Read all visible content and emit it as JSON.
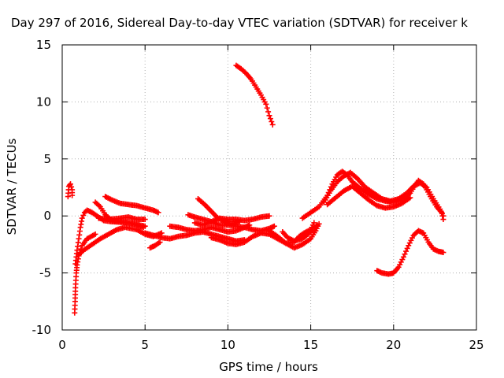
{
  "chart_data": {
    "type": "scatter",
    "title": "Day 297 of 2016, Sidereal Day-to-day VTEC variation (SDTVAR) for receiver k",
    "xlabel": "GPS time / hours",
    "ylabel": "SDTVAR / TECUs",
    "xlim": [
      0,
      25
    ],
    "ylim": [
      -10,
      15
    ],
    "xticks": [
      "0",
      "5",
      "10",
      "15",
      "20",
      "25"
    ],
    "yticks": [
      "-10",
      "-5",
      "0",
      "5",
      "10",
      "15"
    ],
    "grid": true,
    "grid_style": "dotted",
    "marker": "plus",
    "color": "#ff0000",
    "series": [
      {
        "values": [
          [
            0.35,
            1.7
          ],
          [
            0.4,
            2.6
          ],
          [
            0.5,
            2.8
          ],
          [
            0.6,
            2.3
          ],
          [
            0.6,
            1.8
          ]
        ]
      },
      {
        "values": [
          [
            0.75,
            -8.5
          ],
          [
            0.78,
            -7.5
          ],
          [
            0.8,
            -6.3
          ],
          [
            0.85,
            -5.0
          ],
          [
            0.9,
            -4.3
          ],
          [
            1.0,
            -3.5
          ],
          [
            1.2,
            -2.6
          ],
          [
            1.5,
            -2.0
          ],
          [
            2.0,
            -1.6
          ]
        ]
      },
      {
        "values": [
          [
            0.8,
            -4.2
          ],
          [
            0.9,
            -3.0
          ],
          [
            1.0,
            -2.0
          ],
          [
            1.1,
            -1.0
          ],
          [
            1.2,
            -0.2
          ],
          [
            1.35,
            0.3
          ],
          [
            1.5,
            0.5
          ],
          [
            1.8,
            0.3
          ],
          [
            2.1,
            0.0
          ],
          [
            2.5,
            -0.4
          ],
          [
            3.0,
            -0.5
          ],
          [
            4.0,
            -0.6
          ],
          [
            5.0,
            -0.9
          ]
        ]
      },
      {
        "values": [
          [
            1.0,
            -3.4
          ],
          [
            1.3,
            -3.0
          ],
          [
            1.8,
            -2.5
          ],
          [
            2.3,
            -2.0
          ],
          [
            2.8,
            -1.6
          ],
          [
            3.3,
            -1.2
          ],
          [
            3.8,
            -1.0
          ],
          [
            4.5,
            -1.2
          ],
          [
            5.0,
            -1.6
          ],
          [
            5.5,
            -1.8
          ],
          [
            6.0,
            -1.5
          ]
        ]
      },
      {
        "values": [
          [
            2.0,
            1.2
          ],
          [
            2.3,
            0.8
          ],
          [
            2.6,
            0.1
          ],
          [
            3.0,
            -0.4
          ],
          [
            3.5,
            -0.5
          ],
          [
            4.0,
            -0.6
          ],
          [
            4.5,
            -0.8
          ],
          [
            4.9,
            -1.0
          ]
        ]
      },
      {
        "values": [
          [
            2.6,
            1.7
          ],
          [
            3.0,
            1.4
          ],
          [
            3.5,
            1.1
          ],
          [
            4.0,
            1.0
          ],
          [
            4.5,
            0.9
          ],
          [
            5.0,
            0.7
          ],
          [
            5.5,
            0.5
          ],
          [
            5.8,
            0.3
          ]
        ]
      },
      {
        "values": [
          [
            2.2,
            -0.2
          ],
          [
            2.8,
            -0.3
          ],
          [
            3.5,
            -0.2
          ],
          [
            4.0,
            -0.1
          ],
          [
            4.5,
            -0.3
          ],
          [
            5.0,
            -0.3
          ]
        ]
      },
      {
        "values": [
          [
            5.3,
            -2.8
          ],
          [
            5.6,
            -2.6
          ],
          [
            5.9,
            -2.3
          ]
        ]
      },
      {
        "values": [
          [
            5.0,
            -1.5
          ],
          [
            5.5,
            -1.7
          ],
          [
            6.0,
            -1.9
          ],
          [
            6.5,
            -2.0
          ],
          [
            7.0,
            -1.8
          ],
          [
            7.5,
            -1.7
          ],
          [
            8.0,
            -1.5
          ],
          [
            8.5,
            -1.4
          ],
          [
            9.0,
            -1.6
          ],
          [
            9.5,
            -1.8
          ],
          [
            10.0,
            -2.0
          ],
          [
            10.5,
            -2.2
          ],
          [
            11.0,
            -2.1
          ]
        ]
      },
      {
        "values": [
          [
            6.5,
            -0.9
          ],
          [
            7.0,
            -1.0
          ],
          [
            7.5,
            -1.2
          ],
          [
            8.0,
            -1.3
          ],
          [
            8.5,
            -1.2
          ],
          [
            9.0,
            -1.0
          ],
          [
            9.5,
            -1.2
          ],
          [
            10.0,
            -1.4
          ],
          [
            10.5,
            -1.3
          ],
          [
            11.0,
            -1.0
          ],
          [
            11.3,
            -0.8
          ]
        ]
      },
      {
        "values": [
          [
            7.6,
            0.1
          ],
          [
            8.0,
            -0.1
          ],
          [
            8.5,
            -0.3
          ],
          [
            9.0,
            -0.5
          ],
          [
            9.5,
            -0.8
          ],
          [
            10.0,
            -0.8
          ],
          [
            10.5,
            -0.9
          ],
          [
            11.0,
            -1.0
          ],
          [
            11.5,
            -1.2
          ],
          [
            12.0,
            -1.3
          ],
          [
            12.5,
            -1.1
          ],
          [
            12.8,
            -0.9
          ]
        ]
      },
      {
        "values": [
          [
            8.2,
            1.5
          ],
          [
            8.6,
            1.0
          ],
          [
            9.0,
            0.4
          ],
          [
            9.4,
            -0.2
          ],
          [
            9.8,
            -0.5
          ],
          [
            10.2,
            -0.7
          ],
          [
            10.7,
            -0.5
          ]
        ]
      },
      {
        "values": [
          [
            8.0,
            -0.6
          ],
          [
            8.5,
            -0.8
          ],
          [
            9.0,
            -0.5
          ],
          [
            9.5,
            -0.2
          ],
          [
            10.0,
            -0.3
          ],
          [
            10.5,
            -0.3
          ],
          [
            11.0,
            -0.4
          ],
          [
            11.5,
            -0.3
          ],
          [
            12.0,
            -0.1
          ],
          [
            12.5,
            0.0
          ]
        ]
      },
      {
        "values": [
          [
            9.0,
            -1.9
          ],
          [
            9.5,
            -2.1
          ],
          [
            10.0,
            -2.4
          ],
          [
            10.5,
            -2.5
          ],
          [
            11.0,
            -2.3
          ],
          [
            11.5,
            -1.8
          ],
          [
            12.0,
            -1.5
          ],
          [
            12.5,
            -1.6
          ],
          [
            13.0,
            -2.0
          ],
          [
            13.5,
            -2.4
          ],
          [
            14.0,
            -2.8
          ],
          [
            14.5,
            -2.5
          ],
          [
            15.0,
            -2.0
          ],
          [
            15.3,
            -1.3
          ],
          [
            15.5,
            -0.7
          ]
        ]
      },
      {
        "values": [
          [
            10.5,
            13.2
          ],
          [
            10.8,
            12.9
          ],
          [
            11.1,
            12.5
          ],
          [
            11.4,
            12.0
          ],
          [
            11.7,
            11.3
          ],
          [
            12.0,
            10.6
          ],
          [
            12.3,
            9.8
          ],
          [
            12.5,
            8.8
          ],
          [
            12.7,
            8.0
          ]
        ]
      },
      {
        "values": [
          [
            12.5,
            -1.3
          ],
          [
            13.0,
            -1.8
          ],
          [
            13.5,
            -2.4
          ],
          [
            14.0,
            -2.3
          ],
          [
            14.3,
            -1.8
          ],
          [
            14.6,
            -1.5
          ],
          [
            15.0,
            -1.2
          ],
          [
            15.2,
            -0.6
          ]
        ]
      },
      {
        "values": [
          [
            13.3,
            -1.4
          ],
          [
            13.6,
            -1.9
          ],
          [
            14.0,
            -2.2
          ],
          [
            14.5,
            -2.0
          ],
          [
            15.0,
            -1.4
          ],
          [
            15.4,
            -0.8
          ]
        ]
      },
      {
        "values": [
          [
            14.5,
            -0.2
          ],
          [
            15.0,
            0.3
          ],
          [
            15.5,
            0.8
          ],
          [
            16.0,
            1.8
          ],
          [
            16.3,
            2.8
          ],
          [
            16.6,
            3.6
          ],
          [
            16.9,
            3.9
          ],
          [
            17.2,
            3.6
          ],
          [
            17.5,
            3.0
          ],
          [
            18.0,
            2.4
          ],
          [
            18.5,
            1.9
          ],
          [
            19.0,
            1.5
          ],
          [
            19.5,
            1.3
          ],
          [
            20.0,
            1.2
          ],
          [
            20.5,
            1.4
          ],
          [
            21.0,
            2.0
          ],
          [
            21.3,
            2.7
          ],
          [
            21.5,
            3.1
          ],
          [
            21.8,
            2.8
          ],
          [
            22.0,
            2.3
          ],
          [
            22.3,
            1.5
          ],
          [
            22.6,
            0.8
          ],
          [
            22.9,
            0.3
          ],
          [
            23.0,
            -0.3
          ]
        ]
      },
      {
        "values": [
          [
            15.8,
            1.2
          ],
          [
            16.2,
            2.2
          ],
          [
            16.6,
            3.0
          ],
          [
            17.0,
            3.5
          ],
          [
            17.4,
            3.8
          ],
          [
            17.8,
            3.3
          ],
          [
            18.3,
            2.5
          ],
          [
            18.8,
            2.0
          ],
          [
            19.3,
            1.5
          ],
          [
            19.8,
            1.3
          ],
          [
            20.3,
            1.5
          ],
          [
            20.8,
            2.0
          ],
          [
            21.2,
            2.6
          ],
          [
            21.6,
            2.9
          ],
          [
            22.0,
            2.5
          ],
          [
            22.4,
            1.5
          ],
          [
            22.8,
            0.6
          ],
          [
            23.0,
            0.0
          ]
        ]
      },
      {
        "values": [
          [
            16.0,
            1.0
          ],
          [
            16.5,
            1.6
          ],
          [
            17.0,
            2.2
          ],
          [
            17.5,
            2.6
          ],
          [
            18.0,
            2.0
          ],
          [
            18.5,
            1.4
          ],
          [
            19.0,
            0.9
          ],
          [
            19.5,
            0.7
          ],
          [
            20.0,
            0.8
          ],
          [
            20.5,
            1.1
          ],
          [
            21.0,
            1.6
          ]
        ]
      },
      {
        "values": [
          [
            19.0,
            -4.8
          ],
          [
            19.3,
            -5.0
          ],
          [
            19.7,
            -5.1
          ],
          [
            20.0,
            -5.0
          ],
          [
            20.3,
            -4.5
          ],
          [
            20.6,
            -3.6
          ],
          [
            20.9,
            -2.6
          ],
          [
            21.2,
            -1.7
          ],
          [
            21.5,
            -1.3
          ],
          [
            21.8,
            -1.5
          ],
          [
            22.1,
            -2.3
          ],
          [
            22.4,
            -2.9
          ],
          [
            22.7,
            -3.1
          ],
          [
            23.0,
            -3.2
          ]
        ]
      }
    ]
  }
}
